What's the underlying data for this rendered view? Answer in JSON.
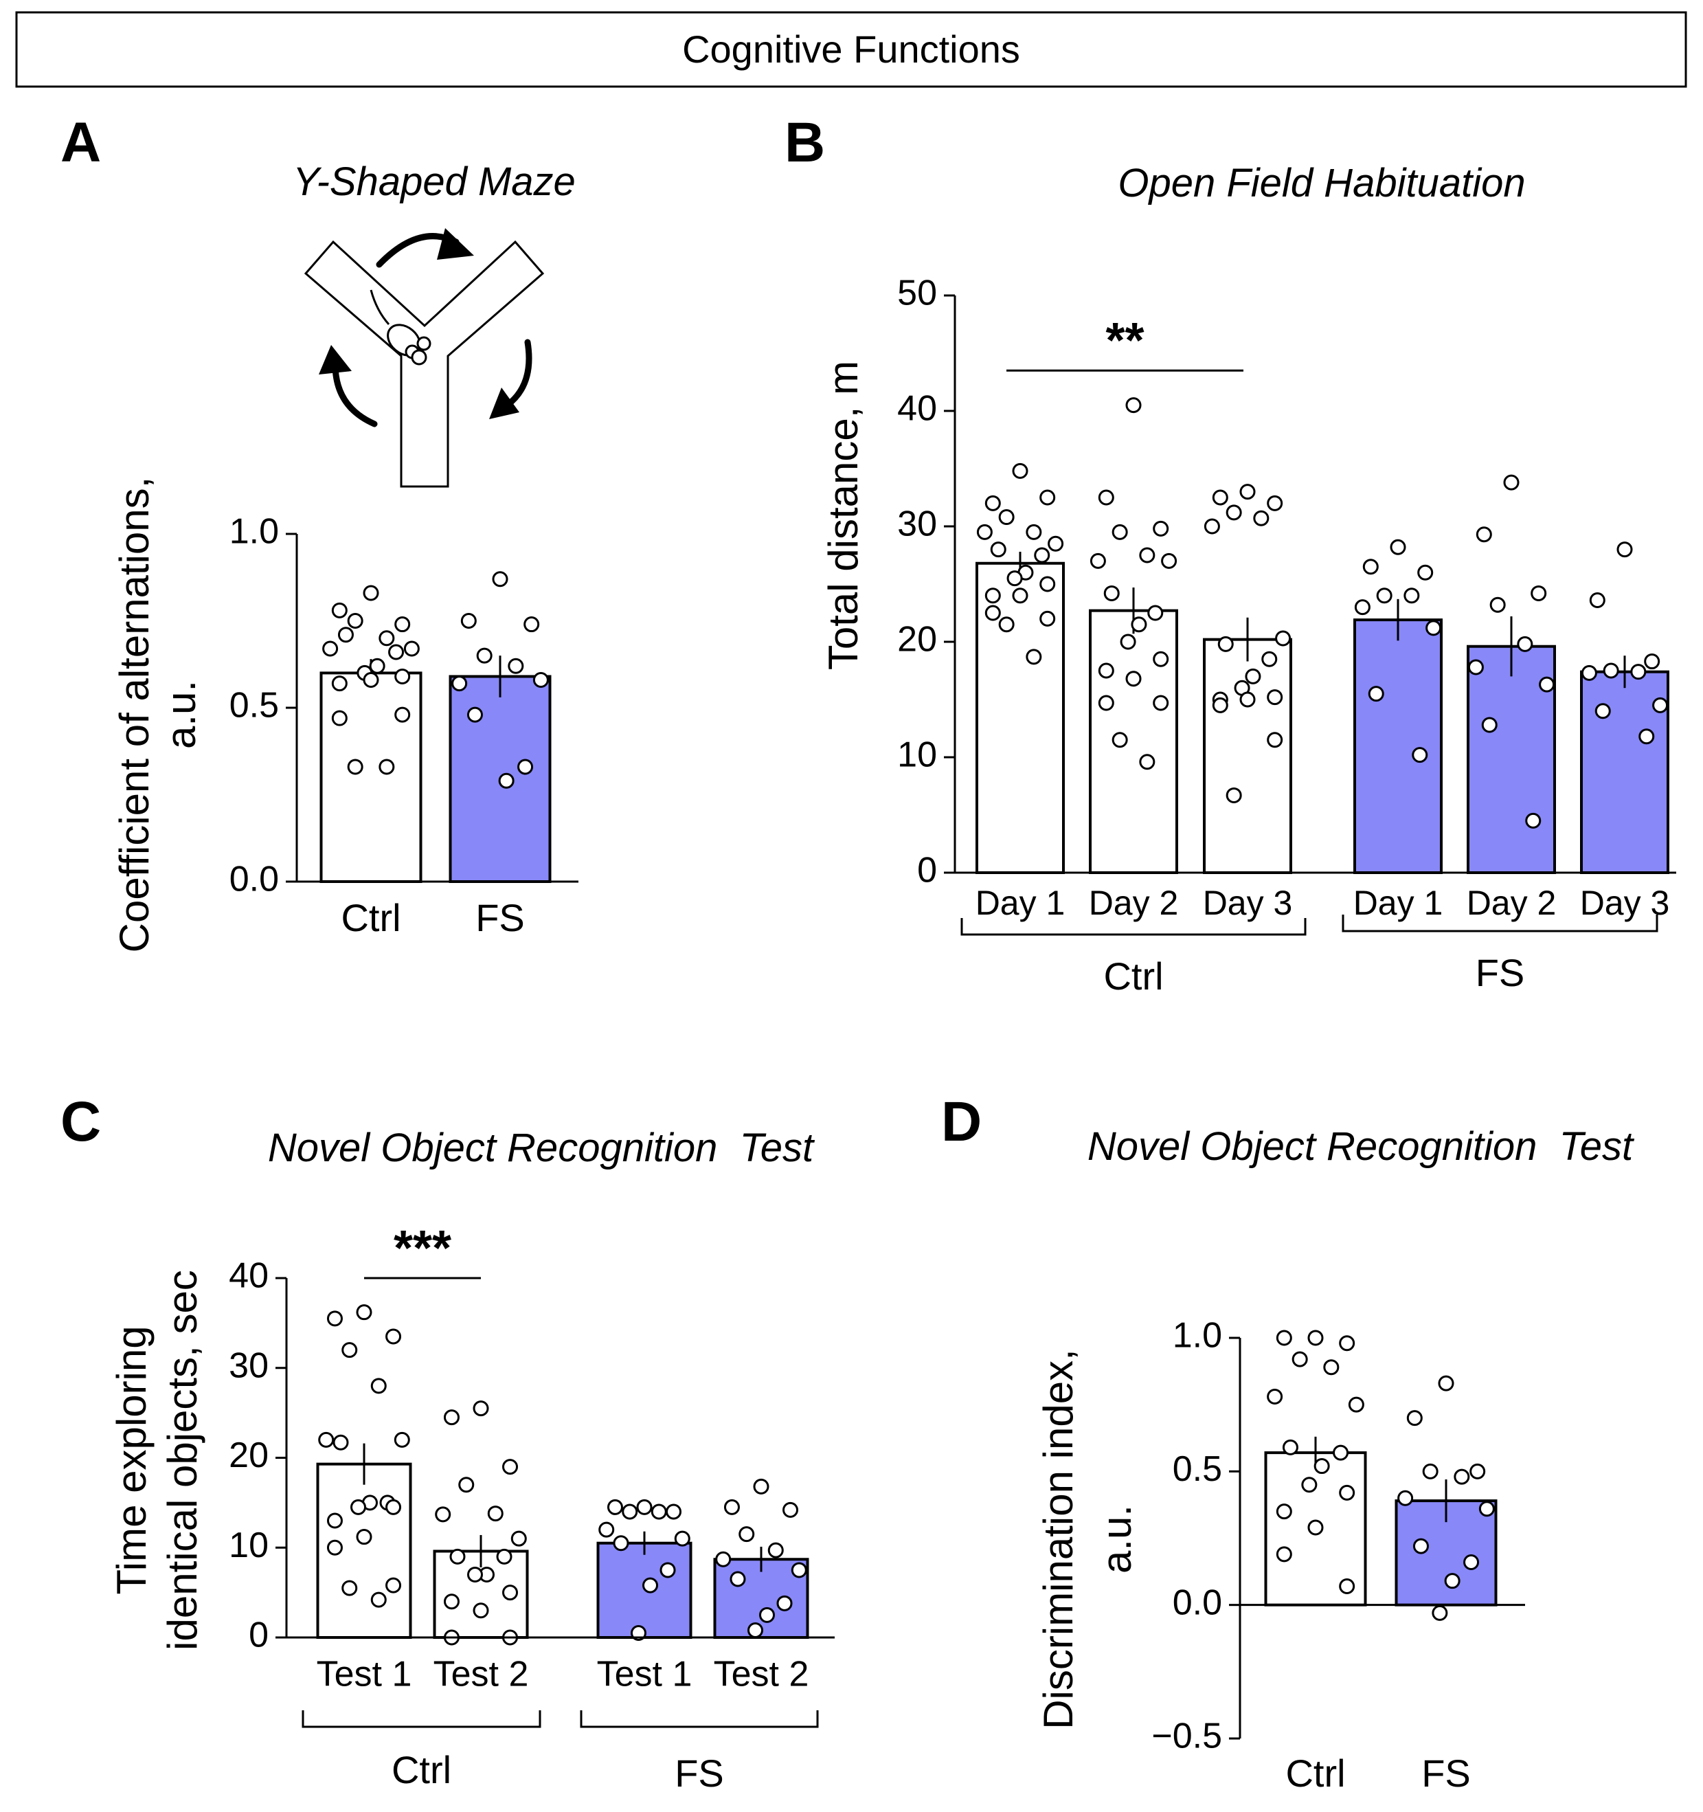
{
  "header": {
    "title": "Cognitive Functions"
  },
  "colors": {
    "ctrl_fill": "#ffffff",
    "fs_fill": "#8888f8",
    "stroke": "#000000"
  },
  "panels": [
    {
      "letter": "A",
      "title": "Y-Shaped Maze",
      "ylabel_lines": [
        "Coefficient of alternations,",
        "a.u."
      ],
      "icons": [
        "maze-icon",
        "mouse-icon",
        "rotation-arrow-icon"
      ],
      "chart_data": {
        "type": "bar",
        "ylim": [
          0,
          1.0
        ],
        "ticks": [
          0,
          0.5,
          1.0
        ],
        "tick_labels": [
          "0.0",
          "0.5",
          "1.0"
        ],
        "categories": [
          "Ctrl",
          "FS"
        ],
        "group_labels": [],
        "series": [
          {
            "name": "Ctrl",
            "value": 0.6,
            "sem": 0.04,
            "color": "#ffffff",
            "points": [
              0.83,
              0.78,
              0.74,
              0.75,
              0.7,
              0.67,
              0.67,
              0.71,
              0.66,
              0.62,
              0.6,
              0.59,
              0.57,
              0.58,
              0.47,
              0.48,
              0.33,
              0.33
            ]
          },
          {
            "name": "FS",
            "value": 0.59,
            "sem": 0.06,
            "color": "#8888f8",
            "points": [
              0.87,
              0.75,
              0.74,
              0.65,
              0.62,
              0.57,
              0.58,
              0.48,
              0.33,
              0.29
            ]
          }
        ],
        "significance": []
      }
    },
    {
      "letter": "B",
      "title": "Open Field Habituation",
      "ylabel_lines": [
        "Total distance, m"
      ],
      "chart_data": {
        "type": "bar",
        "ylim": [
          0,
          50
        ],
        "ticks": [
          0,
          10,
          20,
          30,
          40,
          50
        ],
        "tick_labels": [
          "0",
          "10",
          "20",
          "30",
          "40",
          "50"
        ],
        "categories": [
          "Day 1",
          "Day 2",
          "Day 3",
          "Day 1",
          "Day 2",
          "Day 3"
        ],
        "group_labels": [
          "Ctrl",
          "FS"
        ],
        "series": [
          {
            "name": "Ctrl Day 1",
            "value": 26.8,
            "sem": 1.0,
            "color": "#ffffff",
            "points": [
              34.8,
              32.0,
              32.5,
              30.8,
              29.5,
              29.5,
              28.5,
              28.0,
              27.5,
              26.0,
              25.5,
              25.0,
              24.0,
              24.0,
              22.5,
              22.0,
              21.5,
              18.7
            ]
          },
          {
            "name": "Ctrl Day 2",
            "value": 22.7,
            "sem": 2.0,
            "color": "#ffffff",
            "points": [
              40.5,
              32.5,
              29.8,
              29.5,
              27.5,
              27.0,
              27.0,
              24.2,
              22.5,
              21.5,
              20.0,
              18.5,
              17.5,
              16.8,
              14.7,
              14.7,
              11.5,
              9.6
            ]
          },
          {
            "name": "Ctrl Day 3",
            "value": 20.2,
            "sem": 1.9,
            "color": "#ffffff",
            "points": [
              33.0,
              32.5,
              32.0,
              31.2,
              30.7,
              30.0,
              20.3,
              19.8,
              18.5,
              17.0,
              16.0,
              15.2,
              15.0,
              15.0,
              14.5,
              11.5,
              6.7
            ]
          },
          {
            "name": "FS Day 1",
            "value": 21.9,
            "sem": 1.8,
            "color": "#8888f8",
            "points": [
              28.2,
              26.5,
              26.0,
              24.0,
              24.0,
              23.0,
              21.2,
              15.5,
              10.2
            ]
          },
          {
            "name": "FS Day 2",
            "value": 19.6,
            "sem": 2.6,
            "color": "#8888f8",
            "points": [
              33.8,
              29.3,
              24.2,
              23.2,
              19.8,
              17.8,
              16.3,
              12.8,
              4.5
            ]
          },
          {
            "name": "FS Day 3",
            "value": 17.4,
            "sem": 1.4,
            "color": "#8888f8",
            "points": [
              28.0,
              23.6,
              18.3,
              17.5,
              17.4,
              17.3,
              14.5,
              14.0,
              11.8
            ]
          }
        ],
        "significance": [
          {
            "from": 0,
            "to": 2,
            "label": "**",
            "y": 43.5
          }
        ]
      }
    },
    {
      "letter": "C",
      "title": "Novel Object Recognition  Test",
      "ylabel_lines": [
        "Time exploring",
        "identical objects, sec"
      ],
      "chart_data": {
        "type": "bar",
        "ylim": [
          0,
          40
        ],
        "ticks": [
          0,
          10,
          20,
          30,
          40
        ],
        "tick_labels": [
          "0",
          "10",
          "20",
          "30",
          "40"
        ],
        "categories": [
          "Test 1",
          "Test 2",
          "Test 1",
          "Test 2"
        ],
        "group_labels": [
          "Ctrl",
          "FS"
        ],
        "series": [
          {
            "name": "Ctrl Test 1",
            "value": 19.3,
            "sem": 2.3,
            "color": "#ffffff",
            "points": [
              36.2,
              35.5,
              33.5,
              32.0,
              28.0,
              22.0,
              22.0,
              21.7,
              15.0,
              15.0,
              14.5,
              14.5,
              13.0,
              11.2,
              10.0,
              5.8,
              5.5,
              4.2
            ]
          },
          {
            "name": "Ctrl Test 2",
            "value": 9.6,
            "sem": 1.8,
            "color": "#ffffff",
            "points": [
              25.5,
              24.5,
              19.0,
              17.0,
              13.8,
              13.7,
              11.0,
              9.0,
              9.0,
              7.0,
              7.0,
              5.0,
              4.0,
              3.0,
              0.0,
              0.0
            ]
          },
          {
            "name": "FS Test 1",
            "value": 10.5,
            "sem": 1.3,
            "color": "#8888f8",
            "points": [
              14.5,
              14.5,
              14.0,
              14.0,
              14.0,
              12.0,
              11.0,
              10.5,
              7.5,
              5.8,
              0.5
            ]
          },
          {
            "name": "FS Test 2",
            "value": 8.7,
            "sem": 1.4,
            "color": "#8888f8",
            "points": [
              16.8,
              14.5,
              14.2,
              11.5,
              9.7,
              8.7,
              7.5,
              6.5,
              3.8,
              2.5,
              0.8
            ]
          }
        ],
        "significance": [
          {
            "from": 0,
            "to": 1,
            "label": "***",
            "y": 40.0
          }
        ]
      }
    },
    {
      "letter": "D",
      "title": "Novel Object Recognition  Test",
      "ylabel_lines": [
        "Discrimination index,",
        "a.u."
      ],
      "chart_data": {
        "type": "bar",
        "ylim": [
          -0.5,
          1.0
        ],
        "ticks": [
          -0.5,
          0,
          0.5,
          1.0
        ],
        "tick_labels": [
          "−0.5",
          "0.0",
          "0.5",
          "1.0"
        ],
        "categories": [
          "Ctrl",
          "FS"
        ],
        "group_labels": [],
        "series": [
          {
            "name": "Ctrl",
            "value": 0.57,
            "sem": 0.06,
            "color": "#ffffff",
            "points": [
              1.0,
              1.0,
              0.98,
              0.92,
              0.89,
              0.78,
              0.75,
              0.59,
              0.57,
              0.52,
              0.45,
              0.42,
              0.35,
              0.29,
              0.19,
              0.07
            ]
          },
          {
            "name": "FS",
            "value": 0.39,
            "sem": 0.08,
            "color": "#8888f8",
            "points": [
              0.83,
              0.7,
              0.5,
              0.5,
              0.48,
              0.4,
              0.36,
              0.22,
              0.16,
              0.09,
              -0.03
            ]
          }
        ],
        "significance": []
      }
    }
  ]
}
